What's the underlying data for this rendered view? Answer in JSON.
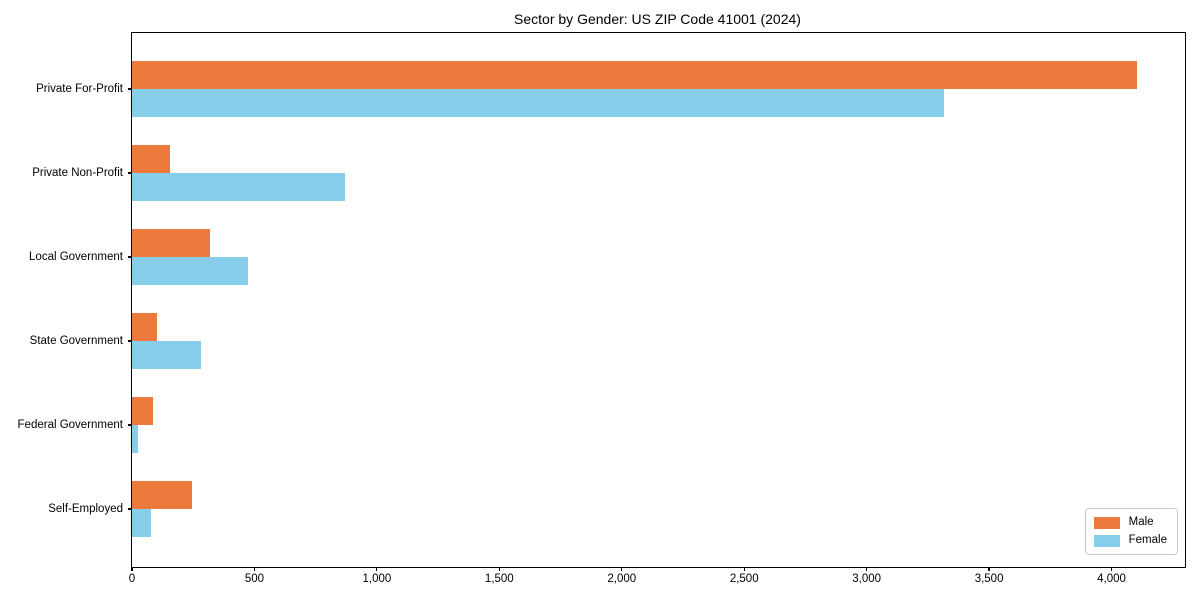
{
  "title": "Sector by Gender: US ZIP Code 41001 (2024)",
  "chart_data": {
    "type": "bar",
    "orientation": "horizontal",
    "title": "Sector by Gender: US ZIP Code 41001 (2024)",
    "categories": [
      "Private For-Profit",
      "Private Non-Profit",
      "Local Government",
      "State Government",
      "Federal Government",
      "Self-Employed"
    ],
    "series": [
      {
        "name": "Male",
        "color": "#ec7a3d",
        "values": [
          4105,
          157,
          318,
          102,
          85,
          245
        ]
      },
      {
        "name": "Female",
        "color": "#87ceeb",
        "values": [
          3317,
          871,
          475,
          282,
          26,
          78
        ]
      }
    ],
    "xlim": [
      0,
      4300
    ],
    "x_ticks": [
      0,
      500,
      1000,
      1500,
      2000,
      2500,
      3000,
      3500,
      4000
    ],
    "x_tick_labels": [
      "0",
      "500",
      "1,000",
      "1,500",
      "2,000",
      "2,500",
      "3,000",
      "3,500",
      "4,000"
    ],
    "legend_position": "lower right",
    "grid": false
  }
}
